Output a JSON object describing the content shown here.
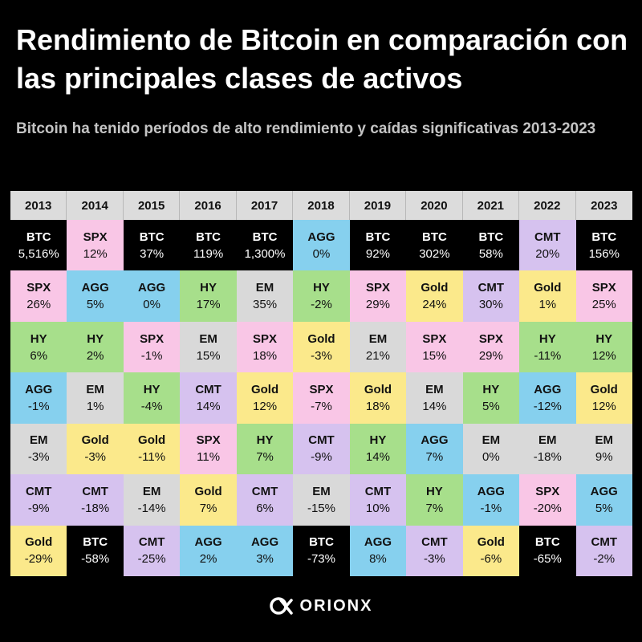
{
  "header": {
    "title": "Rendimiento de Bitcoin en comparación con las principales clases de activos",
    "subtitle": "Bitcoin ha tenido períodos de alto rendimiento y caídas significativas 2013-2023"
  },
  "colors": {
    "BTC": "#000000",
    "SPX": "#f9c6e6",
    "AGG": "#86d0ee",
    "HY": "#a7df8b",
    "EM": "#d9d9d9",
    "CMT": "#d6c2ef",
    "Gold": "#fbe98b"
  },
  "footer": {
    "logo_icon": "orionx-logo-icon",
    "brand": "ORIONX"
  },
  "chart_data": {
    "type": "table",
    "title": "Rendimiento de Bitcoin en comparación con las principales clases de activos",
    "subtitle": "Bitcoin ha tenido períodos de alto rendimiento y caídas significativas 2013-2023",
    "years": [
      "2013",
      "2014",
      "2015",
      "2016",
      "2017",
      "2018",
      "2019",
      "2020",
      "2021",
      "2022",
      "2023"
    ],
    "columns": [
      [
        [
          "BTC",
          "5,516%"
        ],
        [
          "SPX",
          "26%"
        ],
        [
          "HY",
          "6%"
        ],
        [
          "AGG",
          "-1%"
        ],
        [
          "EM",
          "-3%"
        ],
        [
          "CMT",
          "-9%"
        ],
        [
          "Gold",
          "-29%"
        ]
      ],
      [
        [
          "SPX",
          "12%"
        ],
        [
          "AGG",
          "5%"
        ],
        [
          "HY",
          "2%"
        ],
        [
          "EM",
          "1%"
        ],
        [
          "Gold",
          "-3%"
        ],
        [
          "CMT",
          "-18%"
        ],
        [
          "BTC",
          "-58%"
        ]
      ],
      [
        [
          "BTC",
          "37%"
        ],
        [
          "AGG",
          "0%"
        ],
        [
          "SPX",
          "-1%"
        ],
        [
          "HY",
          "-4%"
        ],
        [
          "Gold",
          "-11%"
        ],
        [
          "EM",
          "-14%"
        ],
        [
          "CMT",
          "-25%"
        ]
      ],
      [
        [
          "BTC",
          "119%"
        ],
        [
          "HY",
          "17%"
        ],
        [
          "EM",
          "15%"
        ],
        [
          "CMT",
          "14%"
        ],
        [
          "SPX",
          "11%"
        ],
        [
          "Gold",
          "7%"
        ],
        [
          "AGG",
          "2%"
        ]
      ],
      [
        [
          "BTC",
          "1,300%"
        ],
        [
          "EM",
          "35%"
        ],
        [
          "SPX",
          "18%"
        ],
        [
          "Gold",
          "12%"
        ],
        [
          "HY",
          "7%"
        ],
        [
          "CMT",
          "6%"
        ],
        [
          "AGG",
          "3%"
        ]
      ],
      [
        [
          "AGG",
          "0%"
        ],
        [
          "HY",
          "-2%"
        ],
        [
          "Gold",
          "-3%"
        ],
        [
          "SPX",
          "-7%"
        ],
        [
          "CMT",
          "-9%"
        ],
        [
          "EM",
          "-15%"
        ],
        [
          "BTC",
          "-73%"
        ]
      ],
      [
        [
          "BTC",
          "92%"
        ],
        [
          "SPX",
          "29%"
        ],
        [
          "EM",
          "21%"
        ],
        [
          "Gold",
          "18%"
        ],
        [
          "HY",
          "14%"
        ],
        [
          "CMT",
          "10%"
        ],
        [
          "AGG",
          "8%"
        ]
      ],
      [
        [
          "BTC",
          "302%"
        ],
        [
          "Gold",
          "24%"
        ],
        [
          "SPX",
          "15%"
        ],
        [
          "EM",
          "14%"
        ],
        [
          "AGG",
          "7%"
        ],
        [
          "HY",
          "7%"
        ],
        [
          "CMT",
          "-3%"
        ]
      ],
      [
        [
          "BTC",
          "58%"
        ],
        [
          "CMT",
          "30%"
        ],
        [
          "SPX",
          "29%"
        ],
        [
          "HY",
          "5%"
        ],
        [
          "EM",
          "0%"
        ],
        [
          "AGG",
          "-1%"
        ],
        [
          "Gold",
          "-6%"
        ]
      ],
      [
        [
          "CMT",
          "20%"
        ],
        [
          "Gold",
          "1%"
        ],
        [
          "HY",
          "-11%"
        ],
        [
          "AGG",
          "-12%"
        ],
        [
          "EM",
          "-18%"
        ],
        [
          "SPX",
          "-20%"
        ],
        [
          "BTC",
          "-65%"
        ]
      ],
      [
        [
          "BTC",
          "156%"
        ],
        [
          "SPX",
          "25%"
        ],
        [
          "HY",
          "12%"
        ],
        [
          "Gold",
          "12%"
        ],
        [
          "EM",
          "9%"
        ],
        [
          "AGG",
          "5%"
        ],
        [
          "CMT",
          "-2%"
        ]
      ]
    ]
  }
}
